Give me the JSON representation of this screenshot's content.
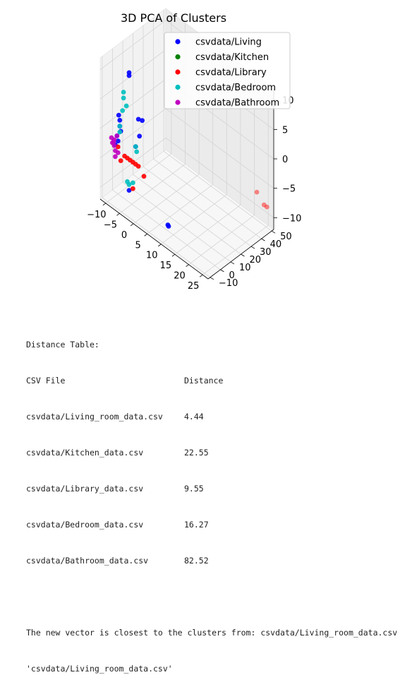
{
  "chart_data": {
    "type": "scatter",
    "projection": "3d",
    "title": "3D PCA of Clusters",
    "grid": true,
    "legend_position": "top-right",
    "axes": {
      "x": {
        "ticks": [
          "−10",
          "−5",
          "0",
          "5",
          "10",
          "15",
          "20",
          "25"
        ],
        "range": [
          -12,
          27
        ]
      },
      "y": {
        "ticks": [
          "−10",
          "0",
          "10",
          "20",
          "30",
          "40",
          "50"
        ],
        "range": [
          -12,
          52
        ]
      },
      "z": {
        "ticks": [
          "−10",
          "−5",
          "0",
          "5",
          "10"
        ],
        "range": [
          -12,
          12
        ]
      }
    },
    "series": [
      {
        "name": "csvdata/Living",
        "color": "#0000ff",
        "points": [
          [
            -6,
            0,
            10
          ],
          [
            -6,
            0,
            9.5
          ],
          [
            -9,
            -2,
            2
          ],
          [
            -9,
            -1,
            1
          ],
          [
            -9,
            -1,
            0
          ],
          [
            -9,
            0,
            -1
          ],
          [
            -10,
            -1,
            -2
          ],
          [
            -10,
            0,
            -3
          ],
          [
            -3,
            1,
            3
          ],
          [
            -2,
            2,
            3
          ],
          [
            -3,
            2,
            0
          ],
          [
            -4,
            1,
            -2
          ],
          [
            -11,
            0,
            -4
          ],
          [
            -6,
            0,
            -10
          ],
          [
            8,
            0,
            -11
          ],
          [
            8.2,
            0.2,
            -11.2
          ]
        ]
      },
      {
        "name": "csvdata/Kitchen",
        "color": "#008000",
        "points": []
      },
      {
        "name": "csvdata/Library",
        "color": "#ff0000",
        "points": [
          [
            -8,
            1,
            -5
          ],
          [
            -7,
            1,
            -5
          ],
          [
            -6,
            1,
            -5
          ],
          [
            -5,
            1,
            -5
          ],
          [
            -4,
            1,
            -5
          ],
          [
            -3,
            1,
            -5
          ],
          [
            -1,
            1,
            -6
          ],
          [
            -10,
            0,
            -4
          ],
          [
            -9,
            0,
            -6
          ],
          [
            -5,
            1,
            -9.5
          ],
          [
            25,
            48,
            -8
          ],
          [
            26,
            48,
            -8
          ],
          [
            22,
            49,
            -7
          ]
        ]
      },
      {
        "name": "csvdata/Bedroom",
        "color": "#00bfbf",
        "points": [
          [
            -8,
            0,
            6
          ],
          [
            -8,
            0,
            5
          ],
          [
            -7,
            0,
            4
          ],
          [
            -8,
            -1,
            3
          ],
          [
            -9,
            -1,
            0
          ],
          [
            -9,
            -1,
            -1
          ],
          [
            -4,
            1,
            -2
          ],
          [
            -4,
            2,
            -3
          ],
          [
            -6,
            0,
            -9
          ],
          [
            -7,
            1,
            -9
          ],
          [
            -5,
            1,
            -8.5
          ]
        ]
      },
      {
        "name": "csvdata/Bathroom",
        "color": "#bf00bf",
        "points": [
          [
            -11,
            -1,
            -3
          ],
          [
            -11,
            -1,
            -4
          ],
          [
            -12,
            0,
            -4
          ],
          [
            -11,
            0,
            -5
          ],
          [
            -10,
            0,
            -5
          ],
          [
            -12,
            -1,
            -3
          ],
          [
            -10,
            -1,
            -2
          ],
          [
            -11,
            0,
            -6
          ],
          [
            -12,
            1,
            -4
          ]
        ]
      }
    ]
  },
  "output": {
    "table_heading": "Distance Table:",
    "columns": [
      "CSV File",
      "Distance"
    ],
    "rows": [
      {
        "file": "csvdata/Living_room_data.csv",
        "distance": "4.44"
      },
      {
        "file": "csvdata/Kitchen_data.csv",
        "distance": "22.55"
      },
      {
        "file": "csvdata/Library_data.csv",
        "distance": "9.55"
      },
      {
        "file": "csvdata/Bedroom_data.csv",
        "distance": "16.27"
      },
      {
        "file": "csvdata/Bathroom_data.csv",
        "distance": "82.52"
      }
    ],
    "conclusion": "The new vector is closest to the clusters from: csvdata/Living_room_data.csv",
    "return_value": "'csvdata/Living_room_data.csv'"
  }
}
